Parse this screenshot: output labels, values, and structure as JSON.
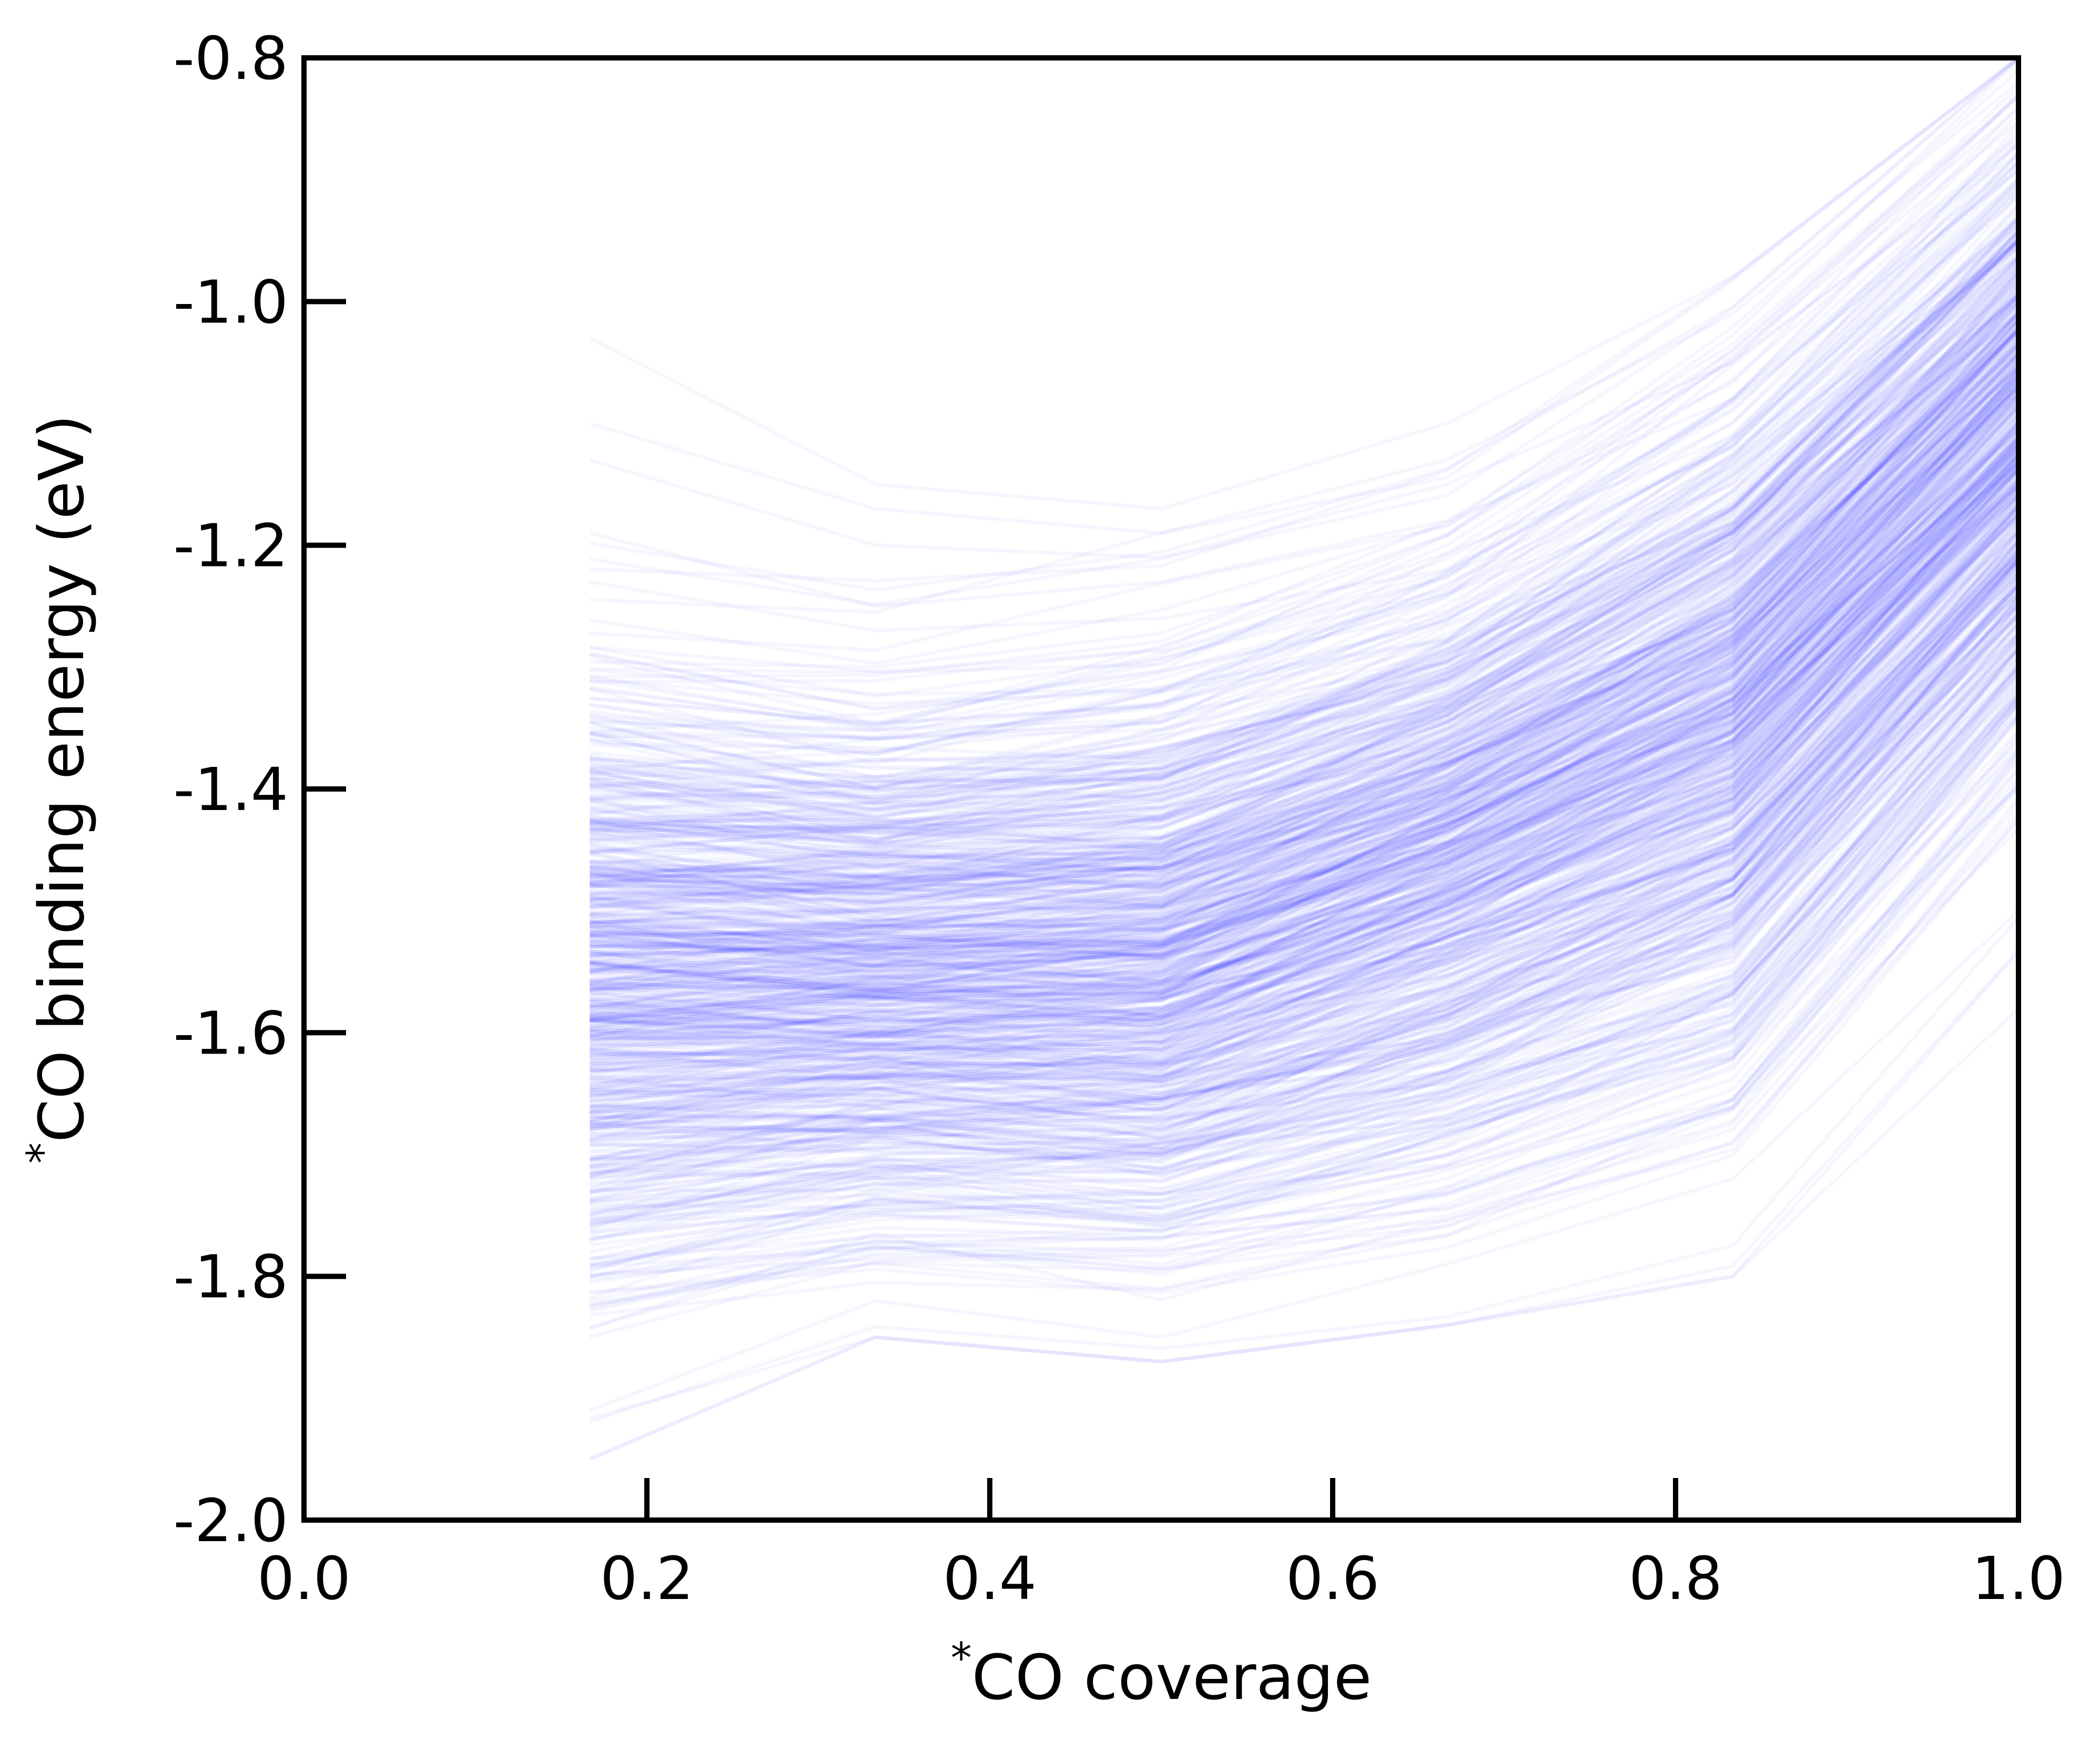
{
  "chart_data": {
    "type": "line",
    "title": "",
    "xlabel": "*CO coverage",
    "ylabel": "*CO binding energy (eV)",
    "xlim": [
      0.0,
      1.0
    ],
    "ylim": [
      -2.0,
      -0.8
    ],
    "x_ticks": [
      0.0,
      0.2,
      0.4,
      0.6,
      0.8,
      1.0
    ],
    "x_tick_labels": [
      "0.0",
      "0.2",
      "0.4",
      "0.6",
      "0.8",
      "1.0"
    ],
    "y_ticks": [
      -2.0,
      -1.8,
      -1.6,
      -1.4,
      -1.2,
      -1.0,
      -0.8
    ],
    "y_tick_labels": [
      "-2.0",
      "-1.8",
      "-1.6",
      "-1.4",
      "-1.2",
      "-1.0",
      "-0.8"
    ],
    "x": [
      0.1667,
      0.3333,
      0.5,
      0.6667,
      0.8333,
      1.0
    ],
    "series_color": "#0000ff",
    "series_opacity": 0.035,
    "series_count": 700,
    "summary": {
      "low": [
        -1.95,
        -1.85,
        -1.87,
        -1.84,
        -1.8,
        -1.58
      ],
      "p10": [
        -1.8,
        -1.76,
        -1.77,
        -1.72,
        -1.64,
        -1.37
      ],
      "mean": [
        -1.55,
        -1.55,
        -1.54,
        -1.45,
        -1.34,
        -1.1
      ],
      "p90": [
        -1.33,
        -1.35,
        -1.32,
        -1.24,
        -1.1,
        -0.88
      ],
      "high": [
        -1.03,
        -1.15,
        -1.17,
        -1.1,
        -0.98,
        -0.8
      ]
    },
    "series": [
      {
        "values": [
          -1.03,
          -1.15,
          -1.17,
          -1.1,
          -0.98,
          -0.8
        ]
      },
      {
        "values": [
          -1.1,
          -1.17,
          -1.19,
          -1.13,
          -1.01,
          -0.82
        ]
      },
      {
        "values": [
          -1.13,
          -1.2,
          -1.21,
          -1.15,
          -1.05,
          -0.83
        ]
      },
      {
        "values": [
          -1.19,
          -1.25,
          -1.23,
          -1.18,
          -1.08,
          -0.84
        ]
      },
      {
        "values": [
          -1.23,
          -1.27,
          -1.26,
          -1.22,
          -1.1,
          -0.86
        ]
      },
      {
        "values": [
          -1.31,
          -1.33,
          -1.32,
          -1.24,
          -1.15,
          -0.9
        ]
      },
      {
        "values": [
          -1.38,
          -1.39,
          -1.37,
          -1.3,
          -1.19,
          -0.95
        ]
      },
      {
        "values": [
          -1.46,
          -1.47,
          -1.44,
          -1.38,
          -1.27,
          -1.03
        ]
      },
      {
        "values": [
          -1.52,
          -1.53,
          -1.52,
          -1.43,
          -1.32,
          -1.08
        ]
      },
      {
        "values": [
          -1.56,
          -1.56,
          -1.55,
          -1.46,
          -1.35,
          -1.12
        ]
      },
      {
        "values": [
          -1.6,
          -1.6,
          -1.59,
          -1.51,
          -1.4,
          -1.17
        ]
      },
      {
        "values": [
          -1.66,
          -1.65,
          -1.64,
          -1.56,
          -1.45,
          -1.22
        ]
      },
      {
        "values": [
          -1.74,
          -1.71,
          -1.71,
          -1.65,
          -1.56,
          -1.3
        ]
      },
      {
        "values": [
          -1.82,
          -1.77,
          -1.79,
          -1.73,
          -1.66,
          -1.4
        ]
      },
      {
        "values": [
          -1.91,
          -1.82,
          -1.85,
          -1.79,
          -1.72,
          -1.5
        ]
      },
      {
        "values": [
          -1.95,
          -1.85,
          -1.87,
          -1.84,
          -1.8,
          -1.58
        ]
      }
    ]
  }
}
